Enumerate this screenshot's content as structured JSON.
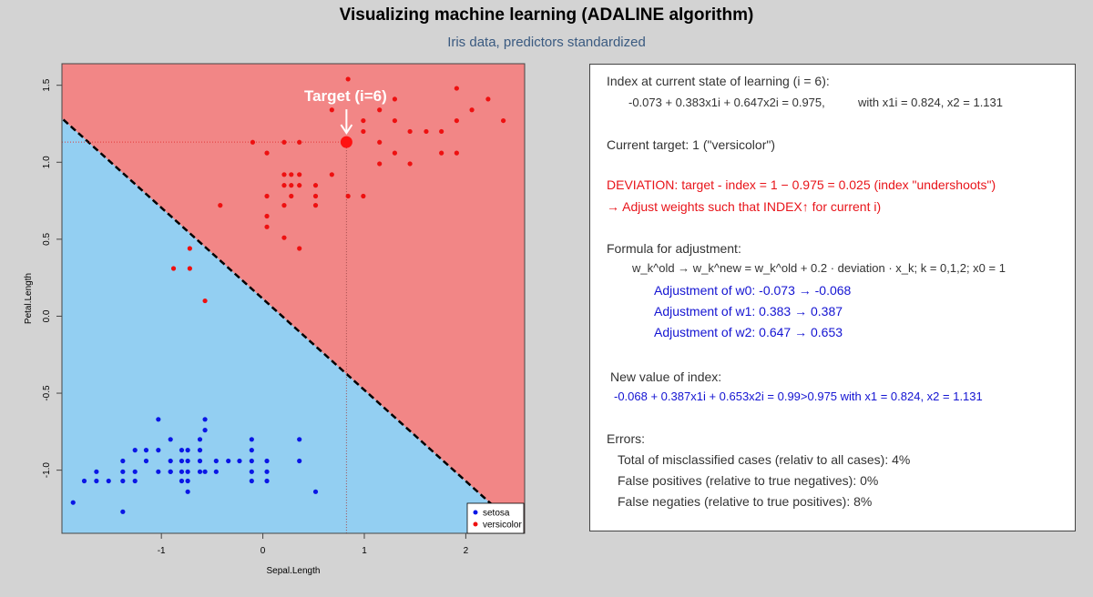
{
  "title": "Visualizing machine learning (ADALINE algorithm)",
  "subtitle": "Iris data, predictors standardized",
  "chart_data": {
    "type": "scatter",
    "xlabel": "Sepal.Length",
    "ylabel": "Petal.Length",
    "xlim": [
      -1.98,
      2.58
    ],
    "ylim": [
      -1.41,
      1.64
    ],
    "xticks": [
      -1,
      0,
      1,
      2
    ],
    "yticks": [
      -1.0,
      -0.5,
      0.0,
      0.5,
      1.0,
      1.5
    ],
    "grid": false,
    "legend_position": "bottom-right",
    "regions": {
      "upper_color": "#f28686",
      "lower_color": "#93cff2",
      "boundary": {
        "w0": -0.073,
        "w1": 0.383,
        "w2": 0.647,
        "style": "dashed"
      }
    },
    "target": {
      "label": "Target (i=6)",
      "x": 0.824,
      "y": 1.131,
      "color": "#ff1111"
    },
    "series": [
      {
        "name": "setosa",
        "color": "#0a16e6",
        "points": [
          [
            -1.87,
            -1.21
          ],
          [
            -1.76,
            -1.07
          ],
          [
            -1.64,
            -1.07
          ],
          [
            -1.64,
            -1.01
          ],
          [
            -1.52,
            -1.07
          ],
          [
            -1.38,
            -1.27
          ],
          [
            -1.38,
            -1.07
          ],
          [
            -1.38,
            -1.01
          ],
          [
            -1.38,
            -0.94
          ],
          [
            -1.26,
            -1.07
          ],
          [
            -1.26,
            -1.01
          ],
          [
            -1.26,
            -0.87
          ],
          [
            -1.15,
            -0.94
          ],
          [
            -1.15,
            -0.87
          ],
          [
            -1.03,
            -1.01
          ],
          [
            -1.03,
            -0.87
          ],
          [
            -1.03,
            -0.67
          ],
          [
            -0.91,
            -1.01
          ],
          [
            -0.91,
            -0.94
          ],
          [
            -0.91,
            -0.8
          ],
          [
            -0.91,
            -1.01
          ],
          [
            -0.8,
            -1.07
          ],
          [
            -0.8,
            -1.01
          ],
          [
            -0.8,
            -0.94
          ],
          [
            -0.8,
            -0.87
          ],
          [
            -0.74,
            -1.14
          ],
          [
            -0.74,
            -1.07
          ],
          [
            -0.74,
            -1.01
          ],
          [
            -0.74,
            -0.94
          ],
          [
            -0.74,
            -0.87
          ],
          [
            -0.62,
            -1.01
          ],
          [
            -0.62,
            -0.94
          ],
          [
            -0.62,
            -0.87
          ],
          [
            -0.62,
            -0.8
          ],
          [
            -0.57,
            -0.74
          ],
          [
            -0.57,
            -0.67
          ],
          [
            -0.57,
            -1.01
          ],
          [
            -0.46,
            -0.94
          ],
          [
            -0.46,
            -1.01
          ],
          [
            -0.34,
            -0.94
          ],
          [
            -0.23,
            -0.94
          ],
          [
            -0.11,
            -1.01
          ],
          [
            -0.11,
            -0.94
          ],
          [
            -0.11,
            -0.87
          ],
          [
            -0.11,
            -0.8
          ],
          [
            -0.11,
            -1.07
          ],
          [
            0.04,
            -1.01
          ],
          [
            0.04,
            -1.07
          ],
          [
            0.04,
            -0.94
          ],
          [
            0.36,
            -0.94
          ],
          [
            0.36,
            -0.8
          ],
          [
            0.52,
            -1.14
          ]
        ]
      },
      {
        "name": "versicolor",
        "color": "#ee1010",
        "points": [
          [
            -0.88,
            0.31
          ],
          [
            -0.72,
            0.31
          ],
          [
            -0.72,
            0.44
          ],
          [
            -0.57,
            0.1
          ],
          [
            -0.42,
            0.72
          ],
          [
            -0.1,
            1.13
          ],
          [
            0.04,
            1.06
          ],
          [
            0.04,
            0.78
          ],
          [
            0.04,
            0.65
          ],
          [
            0.04,
            0.58
          ],
          [
            0.21,
            1.13
          ],
          [
            0.21,
            0.92
          ],
          [
            0.21,
            0.85
          ],
          [
            0.21,
            0.72
          ],
          [
            0.21,
            0.51
          ],
          [
            0.28,
            0.92
          ],
          [
            0.28,
            0.85
          ],
          [
            0.28,
            0.78
          ],
          [
            0.36,
            1.13
          ],
          [
            0.36,
            0.92
          ],
          [
            0.36,
            0.85
          ],
          [
            0.36,
            0.44
          ],
          [
            0.52,
            0.85
          ],
          [
            0.52,
            0.78
          ],
          [
            0.52,
            0.72
          ],
          [
            0.68,
            0.92
          ],
          [
            0.68,
            1.34
          ],
          [
            0.84,
            1.54
          ],
          [
            0.84,
            0.78
          ],
          [
            0.99,
            1.27
          ],
          [
            0.99,
            1.2
          ],
          [
            0.99,
            0.78
          ],
          [
            1.15,
            1.13
          ],
          [
            1.15,
            0.99
          ],
          [
            1.15,
            1.34
          ],
          [
            1.3,
            1.27
          ],
          [
            1.3,
            1.06
          ],
          [
            1.3,
            1.41
          ],
          [
            1.45,
            1.2
          ],
          [
            1.45,
            0.99
          ],
          [
            1.61,
            1.2
          ],
          [
            1.76,
            1.2
          ],
          [
            1.76,
            1.06
          ],
          [
            1.91,
            1.48
          ],
          [
            1.91,
            1.27
          ],
          [
            1.91,
            1.06
          ],
          [
            2.06,
            1.34
          ],
          [
            2.22,
            1.41
          ],
          [
            2.37,
            1.27
          ]
        ]
      }
    ]
  },
  "panel": {
    "index_heading": "Index at current state of learning (i = 6):",
    "index_formula": "-0.073 + 0.383x1i + 0.647x2i = 0.975,",
    "index_with": "with  x1i = 0.824,  x2 = 1.131",
    "current_target": "Current target: 1 (\"versicolor\")",
    "deviation": "DEVIATION: target - index = 1 − 0.975 = 0.025 (index \"undershoots\")",
    "adjust_note": "→ Adjust weights such that INDEX↑ for current i)",
    "formula_heading": "Formula for adjustment:",
    "formula": "w_k^old → w_k^new = w_k^old + 0.2 · deviation · x_k;   k = 0,1,2;  x0 = 1",
    "adj_w0": "Adjustment of w0:  -0.073 → -0.068",
    "adj_w1": "Adjustment of w1:  0.383 → 0.387",
    "adj_w2": "Adjustment of w2:  0.647 → 0.653",
    "new_index_heading": "New value of index:",
    "new_index": "-0.068 + 0.387x1i + 0.653x2i = 0.99>0.975  with x1 = 0.824,  x2 = 1.131",
    "errors_heading": "Errors:",
    "err_total": "Total of misclassified cases (relativ to all cases): 4%",
    "err_fp": "False positives (relative to true negatives): 0%",
    "err_fn": "False negaties (relative to true positives): 8%"
  }
}
